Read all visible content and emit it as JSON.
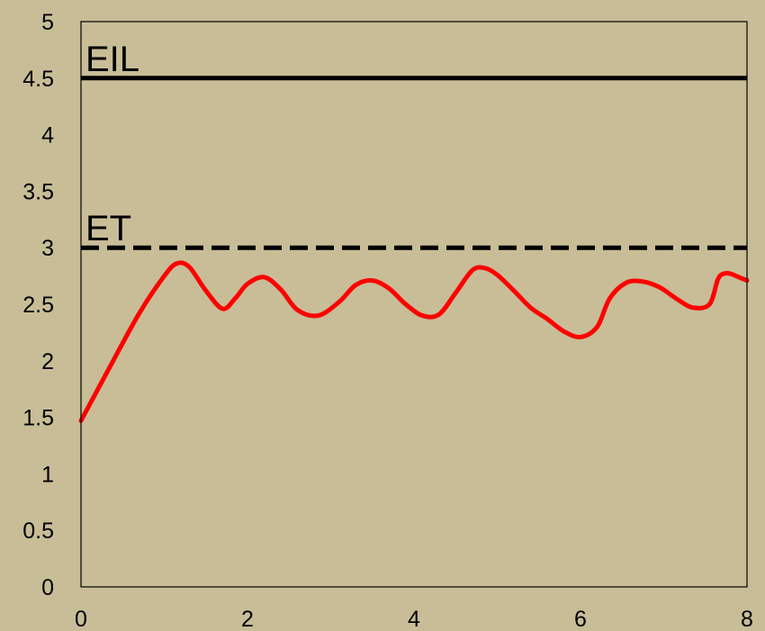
{
  "chart_data": {
    "type": "line",
    "title": "",
    "xlabel": "",
    "ylabel": "",
    "xlim": [
      0,
      8
    ],
    "ylim": [
      0,
      5
    ],
    "x_ticks": [
      0,
      2,
      4,
      6,
      8
    ],
    "x_tick_labels": [
      "0",
      "2",
      "4",
      "6",
      "8"
    ],
    "y_ticks": [
      0,
      0.5,
      1,
      1.5,
      2,
      2.5,
      3,
      3.5,
      4,
      4.5,
      5
    ],
    "y_tick_labels": [
      "0",
      "0.5",
      "1",
      "1.5",
      "2",
      "2.5",
      "3",
      "3.5",
      "4",
      "4.5",
      "5"
    ],
    "grid": false,
    "legend": "none",
    "series": [
      {
        "color": "#ff0000",
        "style": "solid",
        "x": [
          0,
          0.35,
          0.7,
          1.0,
          1.15,
          1.3,
          1.5,
          1.7,
          1.85,
          2.0,
          2.2,
          2.4,
          2.6,
          2.85,
          3.1,
          3.3,
          3.5,
          3.7,
          3.9,
          4.1,
          4.3,
          4.5,
          4.7,
          4.85,
          5.0,
          5.2,
          5.4,
          5.6,
          5.8,
          6.0,
          6.2,
          6.35,
          6.55,
          6.75,
          6.95,
          7.15,
          7.35,
          7.55,
          7.65,
          7.72,
          7.8,
          7.9,
          8.0
        ],
        "y": [
          1.47,
          1.95,
          2.42,
          2.75,
          2.86,
          2.83,
          2.62,
          2.46,
          2.55,
          2.68,
          2.74,
          2.63,
          2.45,
          2.4,
          2.52,
          2.67,
          2.71,
          2.64,
          2.5,
          2.4,
          2.41,
          2.6,
          2.8,
          2.82,
          2.76,
          2.62,
          2.47,
          2.37,
          2.26,
          2.21,
          2.3,
          2.55,
          2.69,
          2.7,
          2.65,
          2.55,
          2.47,
          2.5,
          2.72,
          2.77,
          2.77,
          2.74,
          2.71
        ]
      }
    ],
    "reference_lines": [
      {
        "label": "EIL",
        "y": 4.5,
        "style": "solid",
        "color": "#000000"
      },
      {
        "label": "ET",
        "y": 3.0,
        "style": "dashed",
        "color": "#000000"
      }
    ],
    "background_color": "#c8bd97"
  }
}
